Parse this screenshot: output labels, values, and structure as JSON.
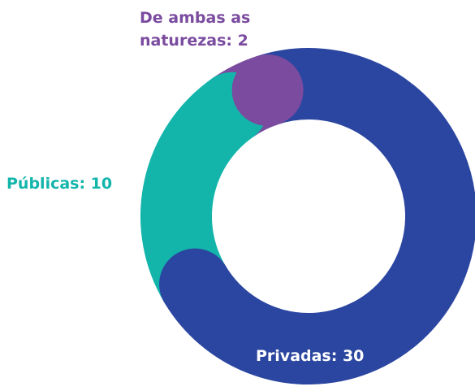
{
  "chart_data": {
    "type": "donut",
    "values": [
      30,
      10,
      2
    ],
    "value_labels": [
      "Privadas: 30",
      "Públicas: 10",
      "De ambas as naturezas: 2"
    ],
    "colors": [
      "#2b46a0",
      "#13b5ab",
      "#7a4b9f"
    ]
  }
}
